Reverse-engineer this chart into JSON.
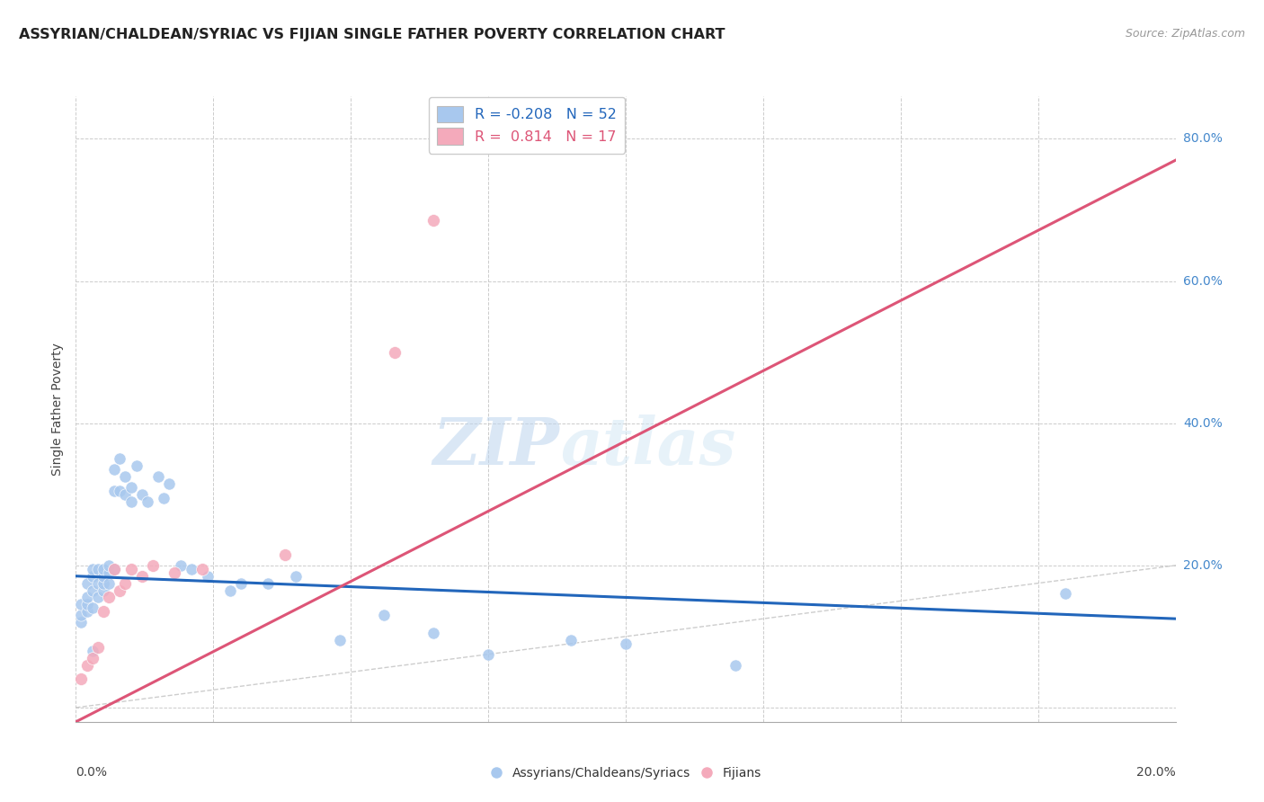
{
  "title": "ASSYRIAN/CHALDEAN/SYRIAC VS FIJIAN SINGLE FATHER POVERTY CORRELATION CHART",
  "source": "Source: ZipAtlas.com",
  "ylabel": "Single Father Poverty",
  "legend_labels": [
    "Assyrians/Chaldeans/Syriacs",
    "Fijians"
  ],
  "r_blue": -0.208,
  "n_blue": 52,
  "r_pink": 0.814,
  "n_pink": 17,
  "xlim": [
    0.0,
    0.2
  ],
  "ylim": [
    -0.02,
    0.86
  ],
  "yticks": [
    0.0,
    0.2,
    0.4,
    0.6,
    0.8
  ],
  "color_blue": "#A8C8EE",
  "color_pink": "#F4AABB",
  "line_blue": "#2266BB",
  "line_pink": "#DD5577",
  "line_diag": "#C8C8C8",
  "watermark_zip": "ZIP",
  "watermark_atlas": "atlas",
  "blue_points_x": [
    0.001,
    0.001,
    0.001,
    0.002,
    0.002,
    0.002,
    0.002,
    0.003,
    0.003,
    0.003,
    0.003,
    0.003,
    0.004,
    0.004,
    0.004,
    0.005,
    0.005,
    0.005,
    0.005,
    0.006,
    0.006,
    0.006,
    0.007,
    0.007,
    0.007,
    0.008,
    0.008,
    0.009,
    0.009,
    0.01,
    0.01,
    0.011,
    0.012,
    0.013,
    0.015,
    0.016,
    0.017,
    0.019,
    0.021,
    0.024,
    0.028,
    0.03,
    0.035,
    0.04,
    0.048,
    0.056,
    0.065,
    0.075,
    0.09,
    0.1,
    0.12,
    0.18
  ],
  "blue_points_y": [
    0.12,
    0.13,
    0.145,
    0.135,
    0.145,
    0.155,
    0.175,
    0.14,
    0.165,
    0.185,
    0.195,
    0.08,
    0.155,
    0.175,
    0.195,
    0.165,
    0.175,
    0.185,
    0.195,
    0.175,
    0.19,
    0.2,
    0.195,
    0.305,
    0.335,
    0.305,
    0.35,
    0.3,
    0.325,
    0.31,
    0.29,
    0.34,
    0.3,
    0.29,
    0.325,
    0.295,
    0.315,
    0.2,
    0.195,
    0.185,
    0.165,
    0.175,
    0.175,
    0.185,
    0.095,
    0.13,
    0.105,
    0.075,
    0.095,
    0.09,
    0.06,
    0.16
  ],
  "pink_points_x": [
    0.001,
    0.002,
    0.003,
    0.004,
    0.005,
    0.006,
    0.007,
    0.008,
    0.009,
    0.01,
    0.012,
    0.014,
    0.018,
    0.023,
    0.038,
    0.058,
    0.065
  ],
  "pink_points_y": [
    0.04,
    0.06,
    0.07,
    0.085,
    0.135,
    0.155,
    0.195,
    0.165,
    0.175,
    0.195,
    0.185,
    0.2,
    0.19,
    0.195,
    0.215,
    0.5,
    0.685
  ],
  "pink_trend_x0": 0.0,
  "pink_trend_y0": -0.02,
  "pink_trend_x1": 0.2,
  "pink_trend_y1": 0.77,
  "blue_trend_x0": 0.0,
  "blue_trend_y0": 0.185,
  "blue_trend_x1": 0.2,
  "blue_trend_y1": 0.125
}
